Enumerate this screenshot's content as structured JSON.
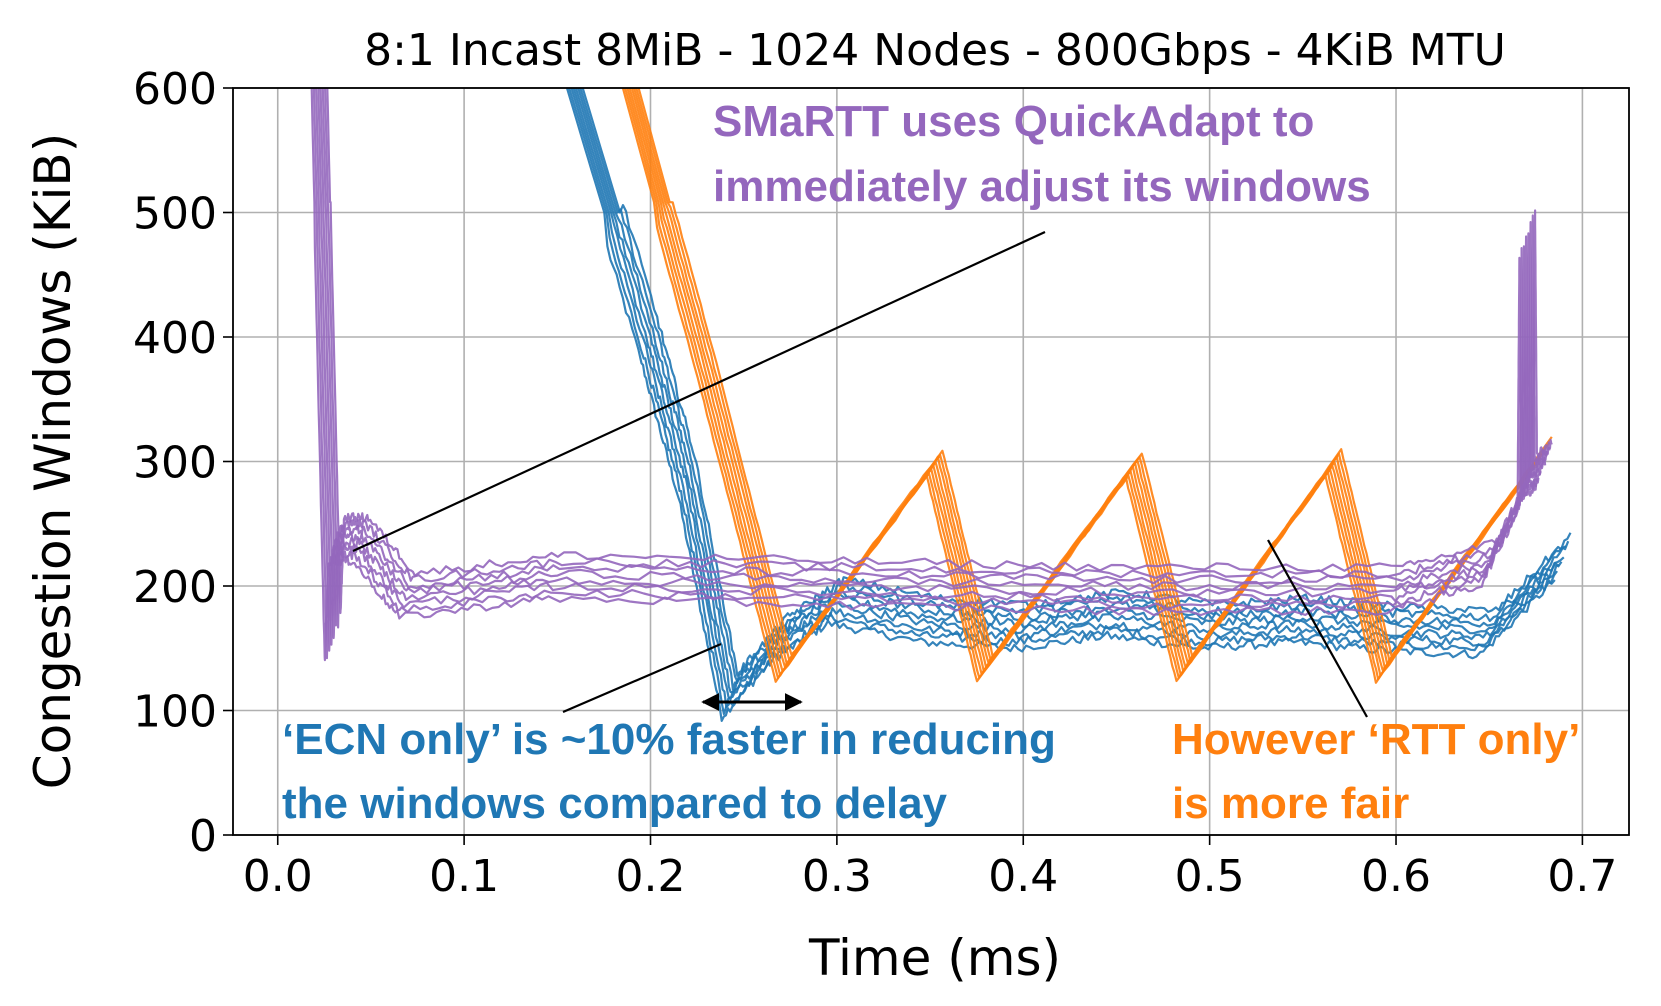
{
  "chart_data": {
    "type": "line",
    "title": "8:1 Incast 8MiB - 1024 Nodes - 800Gbps - 4KiB MTU",
    "xlabel": "Time (ms)",
    "ylabel": "Congestion Windows (KiB)",
    "xlim": [
      -0.024,
      0.725
    ],
    "ylim": [
      0,
      600
    ],
    "xticks": [
      0.0,
      0.1,
      0.2,
      0.3,
      0.4,
      0.5,
      0.6,
      0.7
    ],
    "xtick_labels": [
      "0.0",
      "0.1",
      "0.2",
      "0.3",
      "0.4",
      "0.5",
      "0.6",
      "0.7"
    ],
    "yticks": [
      0,
      100,
      200,
      300,
      400,
      500,
      600
    ],
    "ytick_labels": [
      "0",
      "100",
      "200",
      "300",
      "400",
      "500",
      "600"
    ],
    "grid": true,
    "colors": {
      "ecn": "#1f77b4",
      "rtt": "#ff7f0e",
      "smartt": "#9467bd"
    },
    "series": [
      {
        "color": "#1f77b4",
        "count": 8,
        "x": [
          0.16,
          0.2,
          0.22,
          0.243,
          0.27,
          0.3,
          0.35,
          0.4,
          0.45,
          0.5,
          0.55,
          0.6,
          0.65,
          0.69
        ],
        "values": [
          600,
          400,
          290,
          115,
          160,
          190,
          175,
          170,
          180,
          170,
          175,
          168,
          165,
          225
        ]
      },
      {
        "color": "#ff7f0e",
        "count": 8,
        "x": [
          0.19,
          0.23,
          0.272,
          0.353,
          0.38,
          0.46,
          0.487,
          0.567,
          0.594,
          0.68
        ],
        "values": [
          600,
          380,
          135,
          300,
          135,
          298,
          135,
          300,
          135,
          310
        ]
      },
      {
        "color": "#9467bd",
        "count": 8,
        "x": [
          0.023,
          0.03,
          0.032,
          0.045,
          0.07,
          0.15,
          0.3,
          0.45,
          0.6,
          0.65,
          0.67,
          0.671,
          0.672,
          0.68
        ],
        "values": [
          600,
          160,
          240,
          240,
          195,
          210,
          205,
          200,
          200,
          220,
          280,
          485,
          290,
          300
        ]
      }
    ],
    "annotations": [
      {
        "text": [
          "SMaRTT uses QuickAdapt to",
          "immediately adjust its windows"
        ],
        "color": "#9467bd"
      },
      {
        "text": [
          "‘ECN only’ is ~10% faster in reducing",
          "the windows compared to delay"
        ],
        "color": "#1f77b4"
      },
      {
        "text": [
          "However ‘RTT only’",
          "is more fair"
        ],
        "color": "#ff7f0e"
      }
    ]
  }
}
